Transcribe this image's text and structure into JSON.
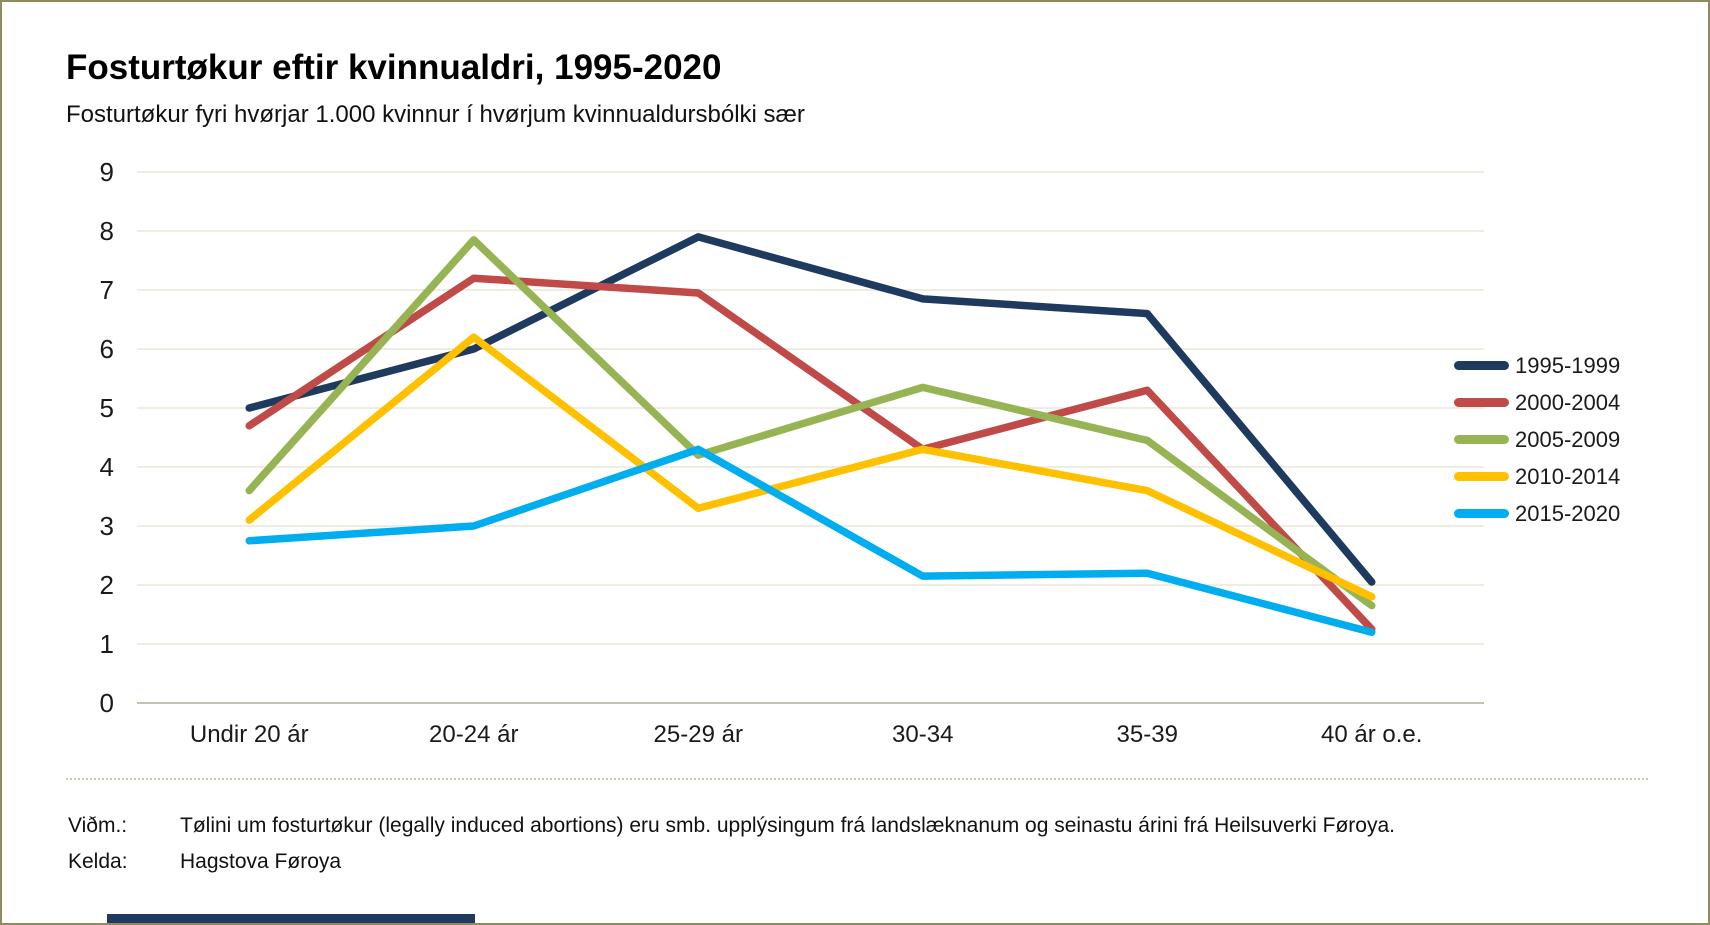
{
  "chart_data": {
    "type": "line",
    "title": "Fosturtøkur eftir kvinnualdri, 1995-2020",
    "subtitle": "Fosturtøkur fyri hvørjar 1.000 kvinnur í hvørjum kvinnualdursbólki sær",
    "categories": [
      "Undir 20 ár",
      "20-24 ár",
      "25-29 ár",
      "30-34",
      "35-39",
      "40 ár o.e."
    ],
    "series": [
      {
        "name": "1995-1999",
        "color": "#1F3A5F",
        "values": [
          5.0,
          6.0,
          7.9,
          6.85,
          6.6,
          2.05
        ]
      },
      {
        "name": "2000-2004",
        "color": "#C04A47",
        "values": [
          4.7,
          7.2,
          6.95,
          4.3,
          5.3,
          1.25
        ]
      },
      {
        "name": "2005-2009",
        "color": "#97B454",
        "values": [
          3.6,
          7.85,
          4.2,
          5.35,
          4.45,
          1.65
        ]
      },
      {
        "name": "2010-2014",
        "color": "#FFC000",
        "values": [
          3.1,
          6.2,
          3.3,
          4.3,
          3.6,
          1.8
        ]
      },
      {
        "name": "2015-2020",
        "color": "#00AEEF",
        "values": [
          2.75,
          3.0,
          4.3,
          2.15,
          2.2,
          1.2
        ]
      }
    ],
    "ylim": [
      0,
      9
    ],
    "ytick_step": 1,
    "grid": "horizontal",
    "legend_position": "right"
  },
  "footer": {
    "vidm_label": "Viðm.:",
    "vidm_text": "Tølini um fosturtøkur (legally induced abortions) eru smb. upplýsingum frá landslæknanum og seinastu árini frá Heilsuverki Føroya.",
    "kelda_label": "Kelda:",
    "kelda_text": "Hagstova Føroya"
  },
  "colors": {
    "gridline": "#EFECE1",
    "axis_line": "#C6C2B2",
    "page_border": "#8E8B5E",
    "bottom_bar": "#1F3A5F",
    "text": "#1a1a1a"
  }
}
